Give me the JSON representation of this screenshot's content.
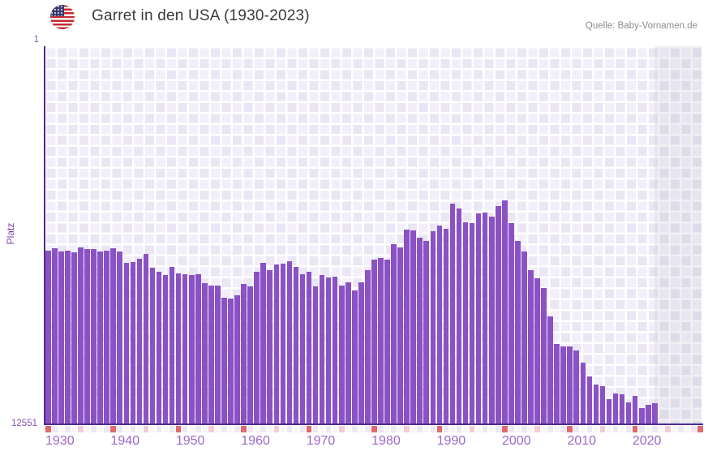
{
  "header": {
    "flag_icon": "us-flag-icon",
    "title": "Garret in den USA (1930-2023)",
    "source": "Quelle: Baby-Vornamen.de"
  },
  "y_axis": {
    "title": "Platz",
    "top_label": "1",
    "bottom_label": "12551"
  },
  "x_axis": {
    "decade_labels": [
      "1930",
      "1940",
      "1950",
      "1960",
      "1970",
      "1980",
      "1990",
      "2000",
      "2010",
      "2020"
    ]
  },
  "chart_data": {
    "type": "bar",
    "title": "Garret in den USA (1930-2023)",
    "ylabel": "Platz",
    "y_axis_inverted": true,
    "ylim": [
      1,
      12551
    ],
    "x_range_bars": [
      1930,
      2023
    ],
    "x_range_axis": [
      1930,
      2030
    ],
    "grid": "checkered-background",
    "legend": "none",
    "x": [
      1930,
      1931,
      1932,
      1933,
      1934,
      1935,
      1936,
      1937,
      1938,
      1939,
      1940,
      1941,
      1942,
      1943,
      1944,
      1945,
      1946,
      1947,
      1948,
      1949,
      1950,
      1951,
      1952,
      1953,
      1954,
      1955,
      1956,
      1957,
      1958,
      1959,
      1960,
      1961,
      1962,
      1963,
      1964,
      1965,
      1966,
      1967,
      1968,
      1969,
      1970,
      1971,
      1972,
      1973,
      1974,
      1975,
      1976,
      1977,
      1978,
      1979,
      1980,
      1981,
      1982,
      1983,
      1984,
      1985,
      1986,
      1987,
      1988,
      1989,
      1990,
      1991,
      1992,
      1993,
      1994,
      1995,
      1996,
      1997,
      1998,
      1999,
      2000,
      2001,
      2002,
      2003,
      2004,
      2005,
      2006,
      2007,
      2008,
      2009,
      2010,
      2011,
      2012,
      2013,
      2014,
      2015,
      2016,
      2017,
      2018,
      2019,
      2020,
      2021,
      2022,
      2023
    ],
    "values": [
      6790,
      6710,
      6815,
      6790,
      6840,
      6680,
      6735,
      6735,
      6815,
      6790,
      6710,
      6815,
      7190,
      7165,
      7055,
      6895,
      7355,
      7490,
      7595,
      7325,
      7540,
      7570,
      7595,
      7570,
      7865,
      7945,
      7945,
      8350,
      8375,
      8270,
      7890,
      7970,
      7490,
      7190,
      7435,
      7245,
      7220,
      7135,
      7325,
      7570,
      7490,
      7970,
      7595,
      7675,
      7650,
      7945,
      7835,
      8105,
      7835,
      7435,
      7085,
      7030,
      7085,
      6570,
      6680,
      6085,
      6115,
      6355,
      6465,
      6140,
      5950,
      6060,
      5225,
      5385,
      5845,
      5870,
      5550,
      5520,
      5655,
      5305,
      5115,
      5870,
      6465,
      6815,
      7435,
      7705,
      8025,
      8970,
      9885,
      9965,
      9965,
      10100,
      10505,
      10960,
      11230,
      11285,
      11715,
      11530,
      11555,
      11825,
      11605,
      12010,
      11905,
      11850
    ]
  },
  "colors": {
    "bar": "#8a52c4",
    "axis": "#4d2b8f",
    "tick_decade": "#e0696f",
    "tick_half_decade": "#f3cdd6",
    "tick_odd_year": "#ece8f6",
    "tick_even_year": "#f8f6fc",
    "x_label": "#9c68c9",
    "y_label": "#8756b8",
    "title": "#3b3b3b",
    "source": "#8d8d8d"
  }
}
